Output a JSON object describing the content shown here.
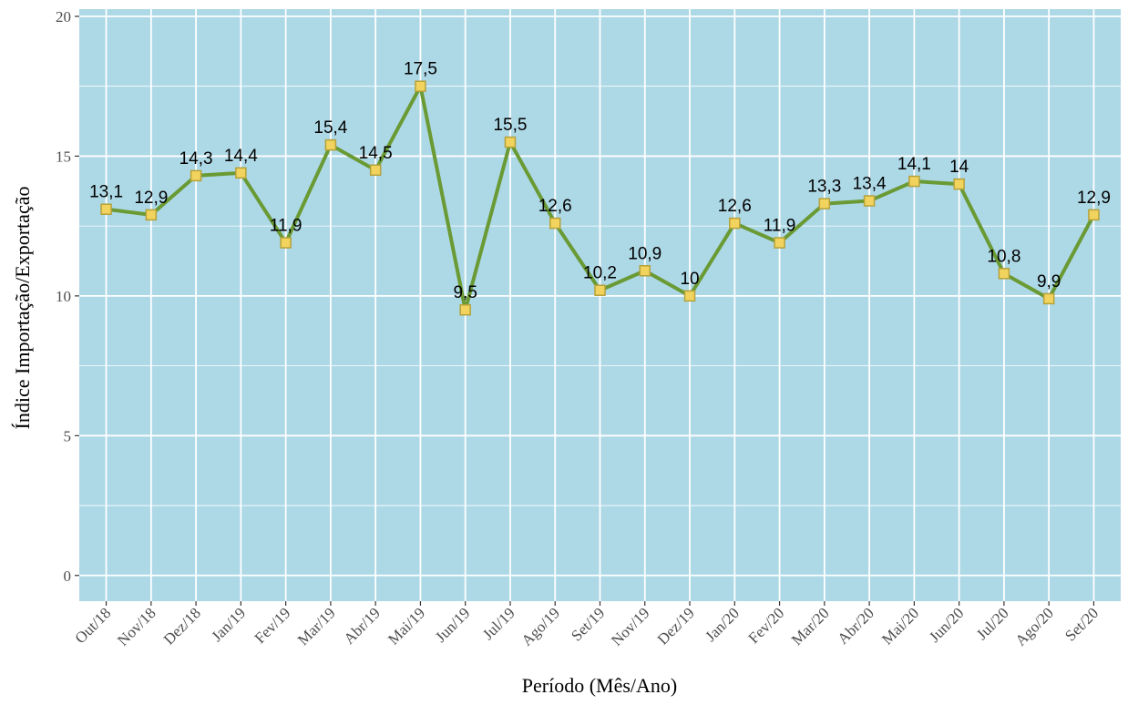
{
  "chart_data": {
    "type": "line",
    "xlabel": "Período (Mês/Ano)",
    "ylabel": "Índice Importação/Exportação",
    "categories": [
      "Out/18",
      "Nov/18",
      "Dez/18",
      "Jan/19",
      "Fev/19",
      "Mar/19",
      "Abr/19",
      "Mai/19",
      "Jun/19",
      "Jul/19",
      "Ago/19",
      "Set/19",
      "Nov/19",
      "Dez/19",
      "Jan/20",
      "Fev/20",
      "Mar/20",
      "Abr/20",
      "Mai/20",
      "Jun/20",
      "Jul/20",
      "Ago/20",
      "Set/20"
    ],
    "values": [
      13.1,
      12.9,
      14.3,
      14.4,
      11.9,
      15.4,
      14.5,
      17.5,
      9.5,
      15.5,
      12.6,
      10.2,
      10.9,
      10,
      12.6,
      11.9,
      13.3,
      13.4,
      14.1,
      14,
      10.8,
      9.9,
      12.9
    ],
    "value_labels": [
      "13,1",
      "12,9",
      "14,3",
      "14,4",
      "11,9",
      "15,4",
      "14,5",
      "17,5",
      "9,5",
      "15,5",
      "12,6",
      "10,2",
      "10,9",
      "10",
      "12,6",
      "11,9",
      "13,3",
      "13,4",
      "14,1",
      "14",
      "10,8",
      "9,9",
      "12,9"
    ],
    "color": "#6a9a33",
    "marker_color": "#f2d35e",
    "ylim": [
      -0.92,
      20.26
    ],
    "yticks": [
      0,
      5,
      10,
      15,
      20
    ],
    "grid": true,
    "background": "#add8e6"
  }
}
